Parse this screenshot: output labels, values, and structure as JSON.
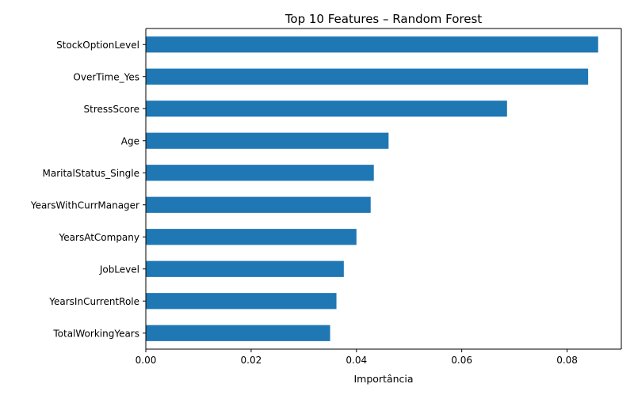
{
  "chart_data": {
    "type": "bar",
    "orientation": "horizontal",
    "title": "Top 10 Features – Random Forest",
    "xlabel": "Importância",
    "ylabel": "",
    "categories": [
      "StockOptionLevel",
      "OverTime_Yes",
      "StressScore",
      "Age",
      "MaritalStatus_Single",
      "YearsWithCurrManager",
      "YearsAtCompany",
      "JobLevel",
      "YearsInCurrentRole",
      "TotalWorkingYears"
    ],
    "values": [
      0.0859,
      0.084,
      0.0686,
      0.0461,
      0.0433,
      0.0427,
      0.04,
      0.0376,
      0.0362,
      0.035
    ],
    "xlim": [
      0,
      0.0903
    ],
    "xticks": [
      0.0,
      0.02,
      0.04,
      0.06,
      0.08
    ],
    "xtick_labels": [
      "0.00",
      "0.02",
      "0.04",
      "0.06",
      "0.08"
    ],
    "bar_color": "#1f77b4",
    "grid": false
  }
}
